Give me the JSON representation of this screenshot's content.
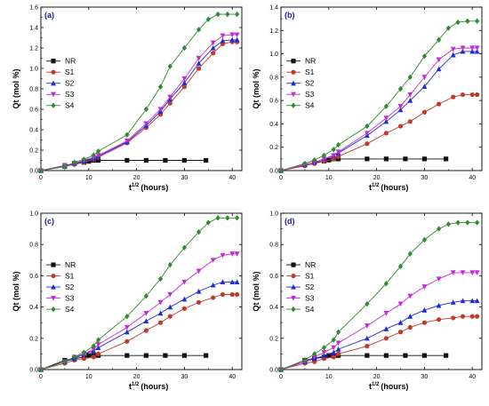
{
  "colors": {
    "NR": "#111111",
    "S1": "#c0392b",
    "S2": "#1f2bd6",
    "S3": "#c42bd6",
    "S4": "#2e8b2e"
  },
  "markers": {
    "NR": "square",
    "S1": "circle",
    "S2": "triangle-up",
    "S3": "triangle-down",
    "S4": "diamond"
  },
  "chart_data": [
    {
      "type": "line",
      "panel_label": "(a)",
      "xlabel": "t^1/2 (hours)",
      "xlabel_main": "t",
      "xlabel_sup": "1/2",
      "xlabel_tail": "(hours)",
      "ylabel": "Qt (mol %)",
      "xlim": [
        0,
        42
      ],
      "ylim": [
        0,
        1.6
      ],
      "xticks": [
        0,
        10,
        20,
        30,
        40
      ],
      "yticks": [
        0.0,
        0.2,
        0.4,
        0.6,
        0.8,
        1.0,
        1.2,
        1.4,
        1.6
      ],
      "ytick_labels": [
        "0.0",
        "0.2",
        "0.4",
        "0.6",
        "0.8",
        "1.0",
        "1.2",
        "1.4",
        "1.6"
      ],
      "legend": "left",
      "series": [
        {
          "name": "NR",
          "x": [
            0,
            5,
            7,
            9,
            10,
            11,
            12,
            18,
            22,
            26,
            30,
            34.5
          ],
          "y": [
            0,
            0.05,
            0.07,
            0.08,
            0.09,
            0.1,
            0.1,
            0.1,
            0.1,
            0.1,
            0.1,
            0.1
          ]
        },
        {
          "name": "S1",
          "x": [
            0,
            5,
            7,
            9,
            11,
            12,
            18,
            22,
            25,
            27,
            30,
            33,
            36,
            38,
            40,
            41
          ],
          "y": [
            0,
            0.04,
            0.06,
            0.08,
            0.11,
            0.13,
            0.27,
            0.42,
            0.55,
            0.66,
            0.82,
            1.0,
            1.15,
            1.24,
            1.26,
            1.26
          ]
        },
        {
          "name": "S2",
          "x": [
            0,
            5,
            7,
            9,
            11,
            12,
            18,
            22,
            25,
            27,
            30,
            33,
            36,
            38,
            40,
            41
          ],
          "y": [
            0,
            0.04,
            0.07,
            0.09,
            0.12,
            0.14,
            0.28,
            0.44,
            0.58,
            0.7,
            0.86,
            1.05,
            1.2,
            1.27,
            1.28,
            1.28
          ]
        },
        {
          "name": "S3",
          "x": [
            0,
            5,
            7,
            9,
            11,
            12,
            18,
            22,
            25,
            27,
            30,
            33,
            36,
            38,
            40,
            41
          ],
          "y": [
            0,
            0.05,
            0.07,
            0.1,
            0.13,
            0.15,
            0.29,
            0.46,
            0.6,
            0.72,
            0.9,
            1.1,
            1.25,
            1.32,
            1.33,
            1.33
          ]
        },
        {
          "name": "S4",
          "x": [
            0,
            5,
            7,
            9,
            11,
            12,
            18,
            22,
            25,
            27,
            30,
            33,
            35,
            37,
            39,
            41
          ],
          "y": [
            0,
            0.04,
            0.08,
            0.11,
            0.15,
            0.19,
            0.35,
            0.6,
            0.82,
            1.02,
            1.2,
            1.38,
            1.48,
            1.53,
            1.53,
            1.53
          ]
        }
      ]
    },
    {
      "type": "line",
      "panel_label": "(b)",
      "xlabel": "t^1/2 (hours)",
      "xlabel_main": "t",
      "xlabel_sup": "1/2",
      "xlabel_tail": "(hours)",
      "ylabel": "Qt (mol %)",
      "xlim": [
        0,
        42
      ],
      "ylim": [
        0,
        1.4
      ],
      "xticks": [
        0,
        10,
        20,
        30,
        40
      ],
      "yticks": [
        0.0,
        0.2,
        0.4,
        0.6,
        0.8,
        1.0,
        1.2,
        1.4
      ],
      "ytick_labels": [
        "0.0",
        "0.2",
        "0.4",
        "0.6",
        "0.8",
        "1.0",
        "1.2",
        "1.4"
      ],
      "legend": "left",
      "series": [
        {
          "name": "NR",
          "x": [
            0,
            5,
            7,
            9,
            10,
            11,
            12,
            18,
            22,
            26,
            30,
            34.5
          ],
          "y": [
            0,
            0.05,
            0.07,
            0.08,
            0.09,
            0.1,
            0.1,
            0.1,
            0.1,
            0.1,
            0.1,
            0.1
          ]
        },
        {
          "name": "S1",
          "x": [
            0,
            5,
            7,
            9,
            11,
            12,
            18,
            22,
            25,
            27,
            30,
            33,
            36,
            38,
            40,
            41
          ],
          "y": [
            0,
            0.04,
            0.06,
            0.08,
            0.1,
            0.12,
            0.23,
            0.32,
            0.38,
            0.42,
            0.5,
            0.57,
            0.63,
            0.65,
            0.65,
            0.65
          ]
        },
        {
          "name": "S2",
          "x": [
            0,
            5,
            7,
            9,
            11,
            12,
            18,
            22,
            25,
            27,
            30,
            33,
            36,
            38,
            40,
            41
          ],
          "y": [
            0,
            0.05,
            0.07,
            0.1,
            0.13,
            0.15,
            0.3,
            0.42,
            0.52,
            0.6,
            0.72,
            0.87,
            0.99,
            1.02,
            1.02,
            1.02
          ]
        },
        {
          "name": "S3",
          "x": [
            0,
            5,
            7,
            9,
            11,
            12,
            18,
            22,
            25,
            27,
            30,
            33,
            36,
            38,
            40,
            41
          ],
          "y": [
            0,
            0.05,
            0.07,
            0.1,
            0.13,
            0.16,
            0.32,
            0.45,
            0.55,
            0.65,
            0.8,
            0.95,
            1.04,
            1.05,
            1.05,
            1.05
          ]
        },
        {
          "name": "S4",
          "x": [
            0,
            5,
            7,
            9,
            11,
            12,
            18,
            22,
            25,
            27,
            30,
            33,
            35,
            37,
            39,
            41
          ],
          "y": [
            0,
            0.06,
            0.09,
            0.13,
            0.18,
            0.22,
            0.38,
            0.55,
            0.7,
            0.8,
            0.98,
            1.12,
            1.22,
            1.27,
            1.28,
            1.28
          ]
        }
      ]
    },
    {
      "type": "line",
      "panel_label": "(c)",
      "xlabel": "t^1/2 (hours)",
      "xlabel_main": "t",
      "xlabel_sup": "1/2",
      "xlabel_tail": "(hours)",
      "ylabel": "Qt (mol %)",
      "xlim": [
        0,
        42
      ],
      "ylim": [
        0,
        1.0
      ],
      "xticks": [
        0,
        10,
        20,
        30,
        40
      ],
      "yticks": [
        0.0,
        0.2,
        0.4,
        0.6,
        0.8,
        1.0
      ],
      "ytick_labels": [
        "0.0",
        "0.2",
        "0.4",
        "0.6",
        "0.8",
        "1.0"
      ],
      "legend": "left",
      "series": [
        {
          "name": "NR",
          "x": [
            0,
            5,
            7,
            9,
            10,
            11,
            12,
            18,
            22,
            26,
            30,
            34.5
          ],
          "y": [
            0,
            0.06,
            0.07,
            0.08,
            0.09,
            0.09,
            0.09,
            0.09,
            0.09,
            0.09,
            0.09,
            0.09
          ]
        },
        {
          "name": "S1",
          "x": [
            0,
            5,
            7,
            9,
            11,
            12,
            18,
            22,
            25,
            27,
            30,
            33,
            36,
            38,
            40,
            41
          ],
          "y": [
            0,
            0.04,
            0.06,
            0.07,
            0.08,
            0.1,
            0.18,
            0.25,
            0.3,
            0.34,
            0.39,
            0.43,
            0.46,
            0.48,
            0.48,
            0.48
          ]
        },
        {
          "name": "S2",
          "x": [
            0,
            5,
            7,
            9,
            11,
            12,
            18,
            22,
            25,
            27,
            30,
            33,
            36,
            38,
            40,
            41
          ],
          "y": [
            0,
            0.05,
            0.07,
            0.1,
            0.12,
            0.14,
            0.24,
            0.31,
            0.36,
            0.4,
            0.45,
            0.5,
            0.54,
            0.56,
            0.56,
            0.56
          ]
        },
        {
          "name": "S3",
          "x": [
            0,
            5,
            7,
            9,
            11,
            12,
            18,
            22,
            25,
            27,
            30,
            33,
            36,
            38,
            40,
            41
          ],
          "y": [
            0,
            0.05,
            0.08,
            0.1,
            0.13,
            0.16,
            0.27,
            0.36,
            0.43,
            0.48,
            0.56,
            0.63,
            0.7,
            0.73,
            0.74,
            0.74
          ]
        },
        {
          "name": "S4",
          "x": [
            0,
            5,
            7,
            9,
            11,
            12,
            18,
            22,
            25,
            27,
            30,
            33,
            35,
            37,
            39,
            41
          ],
          "y": [
            0,
            0.05,
            0.08,
            0.11,
            0.15,
            0.19,
            0.34,
            0.47,
            0.58,
            0.67,
            0.78,
            0.88,
            0.94,
            0.97,
            0.97,
            0.97
          ]
        }
      ]
    },
    {
      "type": "line",
      "panel_label": "(d)",
      "xlabel": "t^1/2 (hours)",
      "xlabel_main": "t",
      "xlabel_sup": "1/2",
      "xlabel_tail": "(hours)",
      "ylabel": "Qt (mol %)",
      "xlim": [
        0,
        42
      ],
      "ylim": [
        0,
        1.0
      ],
      "xticks": [
        0,
        10,
        20,
        30,
        40
      ],
      "yticks": [
        0.0,
        0.2,
        0.4,
        0.6,
        0.8,
        1.0
      ],
      "ytick_labels": [
        "0.0",
        "0.2",
        "0.4",
        "0.6",
        "0.8",
        "1.0"
      ],
      "legend": "left",
      "series": [
        {
          "name": "NR",
          "x": [
            0,
            5,
            7,
            9,
            10,
            11,
            12,
            18,
            22,
            26,
            30,
            34.5
          ],
          "y": [
            0,
            0.06,
            0.07,
            0.08,
            0.09,
            0.09,
            0.09,
            0.09,
            0.09,
            0.09,
            0.09,
            0.09
          ]
        },
        {
          "name": "S1",
          "x": [
            0,
            5,
            7,
            9,
            11,
            12,
            18,
            22,
            25,
            27,
            30,
            33,
            36,
            38,
            40,
            41
          ],
          "y": [
            0,
            0.04,
            0.05,
            0.07,
            0.08,
            0.1,
            0.15,
            0.2,
            0.24,
            0.27,
            0.3,
            0.32,
            0.33,
            0.34,
            0.34,
            0.34
          ]
        },
        {
          "name": "S2",
          "x": [
            0,
            5,
            7,
            9,
            11,
            12,
            18,
            22,
            25,
            27,
            30,
            33,
            36,
            38,
            40,
            41
          ],
          "y": [
            0,
            0.05,
            0.07,
            0.09,
            0.11,
            0.13,
            0.2,
            0.26,
            0.3,
            0.34,
            0.38,
            0.41,
            0.43,
            0.44,
            0.44,
            0.44
          ]
        },
        {
          "name": "S3",
          "x": [
            0,
            5,
            7,
            9,
            11,
            12,
            18,
            22,
            25,
            27,
            30,
            33,
            36,
            38,
            40,
            41
          ],
          "y": [
            0,
            0.05,
            0.08,
            0.11,
            0.14,
            0.17,
            0.28,
            0.36,
            0.42,
            0.47,
            0.53,
            0.58,
            0.62,
            0.62,
            0.62,
            0.62
          ]
        },
        {
          "name": "S4",
          "x": [
            0,
            5,
            7,
            9,
            11,
            12,
            18,
            22,
            25,
            27,
            30,
            33,
            35,
            37,
            39,
            41
          ],
          "y": [
            0,
            0.06,
            0.1,
            0.14,
            0.19,
            0.24,
            0.42,
            0.55,
            0.66,
            0.74,
            0.83,
            0.9,
            0.93,
            0.94,
            0.94,
            0.94
          ]
        }
      ]
    }
  ]
}
